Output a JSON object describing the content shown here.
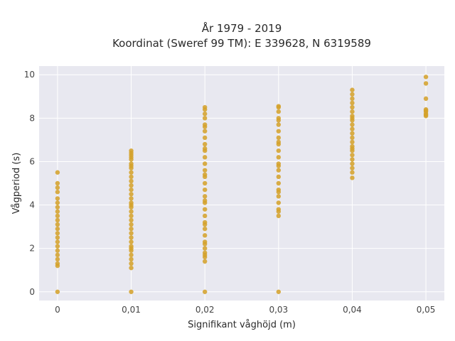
{
  "chart_data": {
    "type": "scatter",
    "title_line1": "År 1979 - 2019",
    "title_line2": "Koordinat (Sweref 99 TM): E 339628, N 6319589",
    "xlabel": "Signifikant våghöjd (m)",
    "ylabel": "Vågperiod (s)",
    "xlim": [
      -0.0025,
      0.0525
    ],
    "ylim": [
      -0.4,
      10.4
    ],
    "x_ticks": [
      0,
      0.01,
      0.02,
      0.03,
      0.04,
      0.05
    ],
    "x_tick_labels": [
      "0",
      "0,01",
      "0,02",
      "0,03",
      "0,04",
      "0,05"
    ],
    "y_ticks": [
      0,
      2,
      4,
      6,
      8,
      10
    ],
    "y_tick_labels": [
      "0",
      "2",
      "4",
      "6",
      "8",
      "10"
    ],
    "grid": true,
    "legend": "none",
    "colors": {
      "marker": "#d4a22c",
      "plot_background": "#e8e8f0",
      "grid": "#ffffff"
    },
    "series": [
      {
        "x": [
          0,
          0,
          0,
          0,
          0,
          0,
          0,
          0,
          0,
          0,
          0,
          0,
          0,
          0,
          0,
          0,
          0,
          0,
          0,
          0,
          0,
          0,
          0.01,
          0.01,
          0.01,
          0.01,
          0.01,
          0.01,
          0.01,
          0.01,
          0.01,
          0.01,
          0.01,
          0.01,
          0.01,
          0.01,
          0.01,
          0.01,
          0.01,
          0.01,
          0.01,
          0.01,
          0.01,
          0.01,
          0.01,
          0.01,
          0.01,
          0.01,
          0.01,
          0.01,
          0.01,
          0.01,
          0.01,
          0.01,
          0.01,
          0.01,
          0.02,
          0.02,
          0.02,
          0.02,
          0.02,
          0.02,
          0.02,
          0.02,
          0.02,
          0.02,
          0.02,
          0.02,
          0.02,
          0.02,
          0.02,
          0.02,
          0.02,
          0.02,
          0.02,
          0.02,
          0.02,
          0.02,
          0.02,
          0.02,
          0.02,
          0.02,
          0.02,
          0.02,
          0.02,
          0.02,
          0.02,
          0.02,
          0.02,
          0.02,
          0.02,
          0.03,
          0.03,
          0.03,
          0.03,
          0.03,
          0.03,
          0.03,
          0.03,
          0.03,
          0.03,
          0.03,
          0.03,
          0.03,
          0.03,
          0.03,
          0.03,
          0.03,
          0.03,
          0.03,
          0.03,
          0.03,
          0.03,
          0.03,
          0.03,
          0.03,
          0.04,
          0.04,
          0.04,
          0.04,
          0.04,
          0.04,
          0.04,
          0.04,
          0.04,
          0.04,
          0.04,
          0.04,
          0.04,
          0.04,
          0.04,
          0.04,
          0.04,
          0.04,
          0.04,
          0.04,
          0.04,
          0.04,
          0.04,
          0.05,
          0.05,
          0.05,
          0.05,
          0.05,
          0.05,
          0.05,
          0.05,
          0.05
        ],
        "y": [
          0,
          1.2,
          1.3,
          1.5,
          1.7,
          1.9,
          2.1,
          2.3,
          2.5,
          2.7,
          2.9,
          3.1,
          3.3,
          3.5,
          3.7,
          3.9,
          4.1,
          4.3,
          4.6,
          4.8,
          5.0,
          5.5,
          0,
          1.1,
          1.3,
          1.5,
          1.7,
          1.9,
          2.1,
          2.3,
          2.5,
          2.7,
          2.9,
          3.1,
          3.3,
          3.5,
          3.7,
          3.9,
          4.1,
          4.3,
          4.5,
          4.7,
          4.9,
          5.1,
          5.3,
          5.5,
          5.7,
          5.9,
          6.1,
          6.3,
          6.4,
          6.5,
          6.2,
          5.8,
          4.0,
          2.0,
          0,
          1.4,
          1.6,
          1.8,
          2.0,
          2.3,
          2.6,
          2.9,
          3.2,
          3.5,
          3.8,
          4.1,
          4.4,
          4.7,
          5.0,
          5.3,
          5.6,
          5.9,
          6.2,
          6.5,
          6.8,
          7.1,
          7.4,
          7.7,
          8.0,
          8.2,
          8.4,
          8.5,
          7.6,
          6.6,
          5.4,
          4.2,
          3.1,
          2.2,
          1.7,
          0,
          3.5,
          3.8,
          4.1,
          4.4,
          4.7,
          5.0,
          5.3,
          5.6,
          5.9,
          6.2,
          6.5,
          6.8,
          7.1,
          7.4,
          7.7,
          8.0,
          8.3,
          8.5,
          8.55,
          7.9,
          6.9,
          5.8,
          4.6,
          3.7,
          5.25,
          5.5,
          5.7,
          5.9,
          6.1,
          6.3,
          6.5,
          6.7,
          6.9,
          7.1,
          7.3,
          7.5,
          7.7,
          7.9,
          8.1,
          8.3,
          8.5,
          8.7,
          8.9,
          9.1,
          9.3,
          8.0,
          6.6,
          8.1,
          8.2,
          8.3,
          8.4,
          8.9,
          9.6,
          9.9,
          8.15,
          8.35
        ]
      }
    ]
  }
}
